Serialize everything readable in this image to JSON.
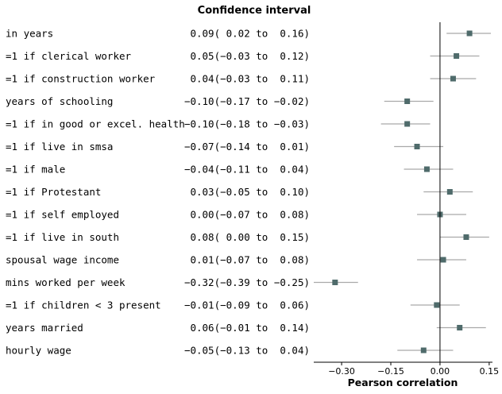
{
  "chart_data": {
    "type": "forest",
    "title": "Confidence interval",
    "xlabel": "Pearson correlation",
    "xlim": [
      -0.385,
      0.16
    ],
    "xticks": [
      -0.3,
      -0.15,
      0.0,
      0.15
    ],
    "xtick_labels": [
      "−0.30",
      "−0.15",
      "0.00",
      "0.15"
    ],
    "reference_line": 0,
    "colors": {
      "marker": "#4f6b6b",
      "ci_line": "#a9a9a9",
      "axis": "#000000"
    },
    "rows": [
      {
        "label": "in years",
        "estimate": 0.09,
        "lower": 0.02,
        "upper": 0.16,
        "text": " 0.09( 0.02 to  0.16)"
      },
      {
        "label": "=1 if clerical worker",
        "estimate": 0.05,
        "lower": -0.03,
        "upper": 0.12,
        "text": " 0.05(−0.03 to  0.12)"
      },
      {
        "label": "=1 if construction worker",
        "estimate": 0.04,
        "lower": -0.03,
        "upper": 0.11,
        "text": " 0.04(−0.03 to  0.11)"
      },
      {
        "label": "years of schooling",
        "estimate": -0.1,
        "lower": -0.17,
        "upper": -0.02,
        "text": "−0.10(−0.17 to −0.02)"
      },
      {
        "label": "=1 if in good or excel. health",
        "estimate": -0.1,
        "lower": -0.18,
        "upper": -0.03,
        "text": "−0.10(−0.18 to −0.03)"
      },
      {
        "label": "=1 if live in smsa",
        "estimate": -0.07,
        "lower": -0.14,
        "upper": 0.01,
        "text": "−0.07(−0.14 to  0.01)"
      },
      {
        "label": "=1 if male",
        "estimate": -0.04,
        "lower": -0.11,
        "upper": 0.04,
        "text": "−0.04(−0.11 to  0.04)"
      },
      {
        "label": "=1 if Protestant",
        "estimate": 0.03,
        "lower": -0.05,
        "upper": 0.1,
        "text": " 0.03(−0.05 to  0.10)"
      },
      {
        "label": "=1 if self employed",
        "estimate": 0.0,
        "lower": -0.07,
        "upper": 0.08,
        "text": " 0.00(−0.07 to  0.08)"
      },
      {
        "label": "=1 if live in south",
        "estimate": 0.08,
        "lower": 0.0,
        "upper": 0.15,
        "text": " 0.08( 0.00 to  0.15)"
      },
      {
        "label": "spousal wage income",
        "estimate": 0.01,
        "lower": -0.07,
        "upper": 0.08,
        "text": " 0.01(−0.07 to  0.08)"
      },
      {
        "label": "mins worked per week",
        "estimate": -0.32,
        "lower": -0.39,
        "upper": -0.25,
        "text": "−0.32(−0.39 to −0.25)"
      },
      {
        "label": "=1 if children < 3 present",
        "estimate": -0.01,
        "lower": -0.09,
        "upper": 0.06,
        "text": "−0.01(−0.09 to  0.06)"
      },
      {
        "label": "years married",
        "estimate": 0.06,
        "lower": -0.01,
        "upper": 0.14,
        "text": " 0.06(−0.01 to  0.14)"
      },
      {
        "label": "hourly wage",
        "estimate": -0.05,
        "lower": -0.13,
        "upper": 0.04,
        "text": "−0.05(−0.13 to  0.04)"
      }
    ]
  }
}
